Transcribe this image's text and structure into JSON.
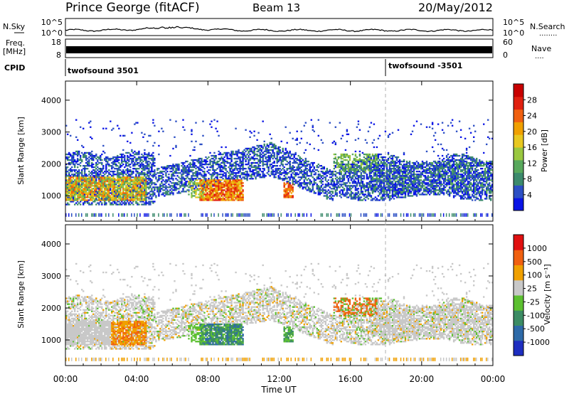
{
  "header": {
    "station": "Prince George (fitACF)",
    "beam": "Beam 13",
    "date": "20/May/2012"
  },
  "nsky_panel": {
    "label": "N.Sky",
    "ytick_top": "10^5",
    "ytick_bottom": "10^0",
    "right_label": "N.Search",
    "right_dots": "........"
  },
  "freq_panel": {
    "label_line1": "Freq.",
    "label_line2": "[MHz]",
    "ytick_top": "18",
    "ytick_bottom": "8",
    "right_tick_top": "60",
    "right_tick_bottom": "0",
    "right_label": "Nave",
    "right_dots": "...."
  },
  "cpid": {
    "label": "CPID",
    "mode1": "twofsound 3501",
    "mode2": "twofsound -3501",
    "switch_time_hours": 18.0
  },
  "chart_data": [
    {
      "type": "heatmap",
      "title": "",
      "quantity": "Power",
      "colorbar_label": "Power [dB]",
      "colorbar_ticks": [
        "28",
        "24",
        "20",
        "16",
        "12",
        "8",
        "4"
      ],
      "colors": [
        "#0a14e6",
        "#2c4fc4",
        "#3c8a6c",
        "#58a85c",
        "#9ac840",
        "#e8c820",
        "#f0a000",
        "#f06010",
        "#e02010",
        "#c80000"
      ],
      "ylabel": "Slant Range [km]",
      "yticks": [
        "1000",
        "2000",
        "3000",
        "4000"
      ],
      "ylim": [
        200,
        4600
      ],
      "xlim": [
        0,
        24
      ],
      "grid": false
    },
    {
      "type": "heatmap",
      "title": "",
      "quantity": "Velocity",
      "colorbar_label": "Velocity [m s⁻¹]",
      "colorbar_ticks": [
        "1000",
        "500",
        "100",
        "25",
        "-25",
        "-100",
        "-500",
        "-1000"
      ],
      "colors": [
        "#1e2ec0",
        "#2e6aa8",
        "#3c8c64",
        "#5cc030",
        "#c8c8c8",
        "#f0a000",
        "#f06010",
        "#e01010"
      ],
      "ylabel": "Slant Range [km]",
      "yticks": [
        "1000",
        "2000",
        "3000",
        "4000"
      ],
      "ylim": [
        200,
        4600
      ],
      "xlim": [
        0,
        24
      ],
      "xlabel": "Time UT",
      "xticks": [
        "00:00",
        "04:00",
        "08:00",
        "12:00",
        "16:00",
        "20:00",
        "00:00"
      ],
      "grid": false
    }
  ]
}
